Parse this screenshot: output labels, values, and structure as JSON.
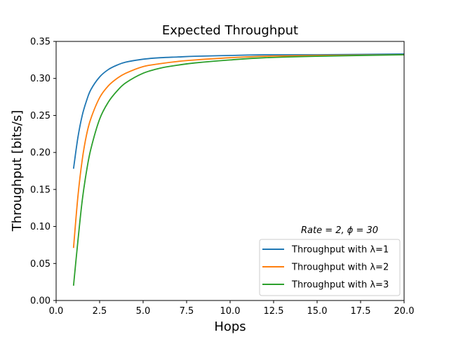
{
  "chart_data": {
    "type": "line",
    "title": "Expected Throughput",
    "xlabel": "Hops",
    "ylabel": "Throughput [bits/s]",
    "xlim": [
      0,
      20
    ],
    "ylim": [
      0,
      0.35
    ],
    "x_ticks": [
      0,
      2.5,
      5,
      7.5,
      10,
      12.5,
      15,
      17.5,
      20
    ],
    "x_tick_labels": [
      "0.0",
      "2.5",
      "5.0",
      "7.5",
      "10.0",
      "12.5",
      "15.0",
      "17.5",
      "20.0"
    ],
    "y_ticks": [
      0,
      0.05,
      0.1,
      0.15,
      0.2,
      0.25,
      0.3,
      0.35
    ],
    "y_tick_labels": [
      "0.00",
      "0.05",
      "0.10",
      "0.15",
      "0.20",
      "0.25",
      "0.30",
      "0.35"
    ],
    "grid": false,
    "legend": {
      "title": "Rate = 2, ϕ = 30",
      "placement": "lower-right"
    },
    "series": [
      {
        "name": "Throughput with λ=1",
        "color": "#1f77b4",
        "x": [
          1,
          1.25,
          1.5,
          1.75,
          2,
          2.5,
          3,
          3.5,
          4,
          5,
          6,
          7,
          8,
          10,
          12,
          15,
          20
        ],
        "y": [
          0.178,
          0.22,
          0.25,
          0.27,
          0.285,
          0.302,
          0.312,
          0.318,
          0.322,
          0.326,
          0.328,
          0.329,
          0.33,
          0.331,
          0.332,
          0.332,
          0.333
        ]
      },
      {
        "name": "Throughput with λ=2",
        "color": "#ff7f0e",
        "x": [
          1,
          1.25,
          1.5,
          1.75,
          2,
          2.5,
          3,
          3.5,
          4,
          5,
          6,
          7,
          8,
          10,
          12,
          15,
          20
        ],
        "y": [
          0.071,
          0.14,
          0.19,
          0.224,
          0.246,
          0.274,
          0.29,
          0.3,
          0.307,
          0.316,
          0.32,
          0.323,
          0.325,
          0.328,
          0.33,
          0.331,
          0.332
        ]
      },
      {
        "name": "Throughput with λ=3",
        "color": "#2ca02c",
        "x": [
          1,
          1.25,
          1.5,
          1.75,
          2,
          2.5,
          3,
          3.5,
          4,
          5,
          6,
          7,
          8,
          10,
          12,
          15,
          20
        ],
        "y": [
          0.02,
          0.08,
          0.135,
          0.175,
          0.205,
          0.245,
          0.268,
          0.283,
          0.294,
          0.307,
          0.314,
          0.318,
          0.321,
          0.325,
          0.328,
          0.33,
          0.332
        ]
      }
    ]
  }
}
